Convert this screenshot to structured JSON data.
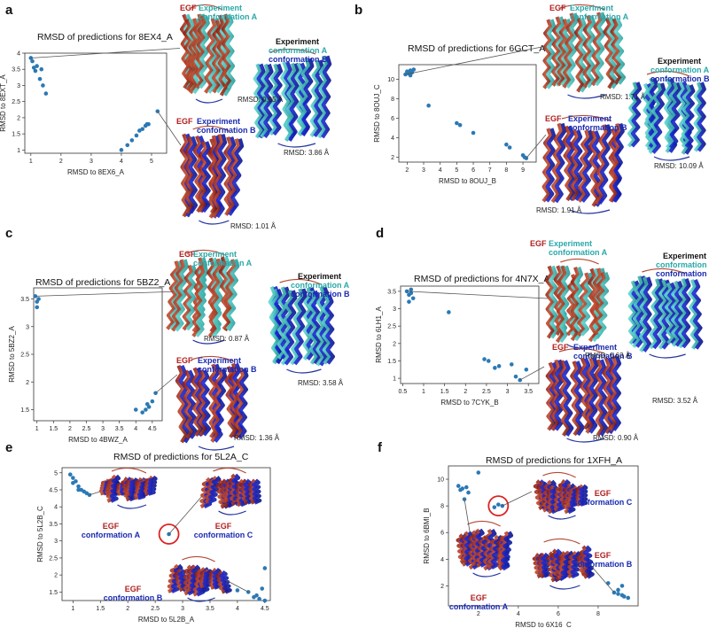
{
  "panels": [
    {
      "id": "a",
      "letter": "a",
      "title": "RMSD of predictions for 8EX4_A",
      "xlabel": "RMSD to 8EX6_A",
      "ylabel": "RMSD to 8EXT_A",
      "egf_top": "EGF",
      "egf_top_conf": [
        "Experiment",
        "conformation A"
      ],
      "rmsd_top": "RMSD: 0.95 Å",
      "egf_bottom": "EGF",
      "egf_bottom_conf": [
        "Experiment",
        "conformation B"
      ],
      "rmsd_bottom": "RMSD: 1.01 Å",
      "exp_lines": [
        "Experiment",
        "conformation A",
        "conformation B"
      ],
      "rmsd_exp": "RMSD: 3.86 Å"
    },
    {
      "id": "b",
      "letter": "b",
      "title": "RMSD of predictions for 6GCT_A",
      "xlabel": "RMSD to 8OUJ_B",
      "ylabel": "RMSD to 8OUJ_C",
      "egf_top": "EGF",
      "egf_top_conf": [
        "Experiment",
        "conformation A"
      ],
      "rmsd_top": "RMSD: 1.71 Å",
      "egf_bottom": "EGF",
      "egf_bottom_conf": [
        "Experiment",
        "conformation B"
      ],
      "rmsd_bottom": "RMSD: 1.91 Å",
      "exp_lines": [
        "Experiment",
        "conformation A",
        "conformation B"
      ],
      "rmsd_exp": "RMSD: 10.09 Å"
    },
    {
      "id": "c",
      "letter": "c",
      "title": "RMSD of predictions for 5BZ2_A",
      "xlabel": "RMSD to 4BWZ_A",
      "ylabel": "RMSD to 5BZ2_A",
      "egf_top": "EGF",
      "egf_top_conf": [
        "Experiment",
        "conformation A"
      ],
      "rmsd_top": "RMSD: 0.87 Å",
      "egf_bottom": "EGF",
      "egf_bottom_conf": [
        "Experiment",
        "conformation B"
      ],
      "rmsd_bottom": "RMSD: 1.36 Å",
      "exp_lines": [
        "Experiment",
        "conformation A",
        "conformation B"
      ],
      "rmsd_exp": "RMSD: 3.58 Å"
    },
    {
      "id": "d",
      "letter": "d",
      "title": "RMSD of predictions for 4N7X_A",
      "xlabel": "RMSD to 7CYK_B",
      "ylabel": "RMSD to 6LH1_A",
      "egf_top": "EGF",
      "egf_top_conf": [
        "Experiment",
        "conformation A"
      ],
      "rmsd_top": "RMSD: 0.63 Å",
      "egf_bottom": "EGF",
      "egf_bottom_conf": [
        "Experiment",
        "conformation B"
      ],
      "rmsd_bottom": "RMSD: 0.90 Å",
      "exp_lines": [
        "Experiment",
        "conformation A",
        "conformation B"
      ],
      "rmsd_exp": "RMSD: 3.52 Å"
    },
    {
      "id": "e",
      "letter": "e",
      "title": "RMSD of predictions for 5L2A_C",
      "xlabel": "RMSD to 5L2B_A",
      "ylabel": "RMSD to 5L2B_C",
      "labels": [
        [
          "EGF",
          "conformation A"
        ],
        [
          "EGF",
          "conformation C"
        ],
        [
          "EGF",
          "conformation B"
        ]
      ]
    },
    {
      "id": "f",
      "letter": "f",
      "title": "RMSD of predictions for 1XFH_A",
      "xlabel": "RMSD to 6X16_C",
      "ylabel": "RMSD to 6BMI_B",
      "labels": [
        [
          "EGF",
          "conformation C"
        ],
        [
          "EGF",
          "conformation B"
        ],
        [
          "EGF",
          "conformation A"
        ]
      ]
    }
  ],
  "chart_data": [
    {
      "type": "scatter",
      "panel": "a",
      "title": "RMSD of predictions for 8EX4_A",
      "xlabel": "RMSD to 8EX6_A",
      "ylabel": "RMSD to 8EXT_A",
      "xlim": [
        0.8,
        5.5
      ],
      "ylim": [
        0.9,
        4.0
      ],
      "xticks": [
        1,
        2,
        3,
        4,
        5
      ],
      "yticks": [
        1.0,
        1.5,
        2.0,
        2.5,
        3.0,
        3.5,
        4.0
      ],
      "x": [
        1.0,
        1.05,
        1.1,
        1.2,
        1.15,
        1.3,
        1.4,
        1.35,
        1.5,
        4.0,
        4.2,
        4.35,
        4.5,
        4.6,
        4.7,
        4.8,
        4.85,
        4.9,
        5.2
      ],
      "y": [
        3.85,
        3.75,
        3.55,
        3.6,
        3.45,
        3.2,
        3.0,
        3.5,
        2.75,
        1.0,
        1.15,
        1.3,
        1.45,
        1.6,
        1.65,
        1.75,
        1.8,
        1.8,
        2.2
      ]
    },
    {
      "type": "scatter",
      "panel": "b",
      "title": "RMSD of predictions for 6GCT_A",
      "xlabel": "RMSD to 8OUJ_B",
      "ylabel": "RMSD to 8OUJ_C",
      "xlim": [
        1.5,
        9.8
      ],
      "ylim": [
        1.5,
        11.5
      ],
      "xticks": [
        2,
        3,
        4,
        5,
        6,
        7,
        8,
        9
      ],
      "yticks": [
        2,
        4,
        6,
        8,
        10
      ],
      "x": [
        1.9,
        2.0,
        2.1,
        2.2,
        2.3,
        2.4,
        2.2,
        3.3,
        5.0,
        5.2,
        6.0,
        8.0,
        8.2,
        9.0,
        9.1,
        9.2
      ],
      "y": [
        10.5,
        10.8,
        10.6,
        10.9,
        10.7,
        11.0,
        10.4,
        7.3,
        5.5,
        5.3,
        4.5,
        3.3,
        3.0,
        2.2,
        2.0,
        1.9
      ]
    },
    {
      "type": "scatter",
      "panel": "c",
      "title": "RMSD of predictions for 5BZ2_A",
      "xlabel": "RMSD to 4BWZ_A",
      "ylabel": "RMSD to 5BZ2_A",
      "xlim": [
        0.9,
        4.8
      ],
      "ylim": [
        1.3,
        3.7
      ],
      "xticks": [
        1.0,
        1.5,
        2.0,
        2.5,
        3.0,
        3.5,
        4.0,
        4.5
      ],
      "yticks": [
        1.5,
        2.0,
        2.5,
        3.0,
        3.5
      ],
      "x": [
        0.95,
        1.0,
        1.05,
        1.0,
        4.0,
        4.2,
        4.3,
        4.35,
        4.4,
        4.5,
        4.6
      ],
      "y": [
        3.55,
        3.45,
        3.5,
        3.35,
        1.5,
        1.45,
        1.5,
        1.6,
        1.55,
        1.65,
        1.8
      ]
    },
    {
      "type": "scatter",
      "panel": "d",
      "title": "RMSD of predictions for 4N7X_A",
      "xlabel": "RMSD to 7CYK_B",
      "ylabel": "RMSD to 6LH1_A",
      "xlim": [
        0.45,
        3.75
      ],
      "ylim": [
        0.85,
        3.65
      ],
      "xticks": [
        0.5,
        1.0,
        1.5,
        2.0,
        2.5,
        3.0,
        3.5
      ],
      "yticks": [
        1.0,
        1.5,
        2.0,
        2.5,
        3.0,
        3.5
      ],
      "x": [
        0.6,
        0.65,
        0.7,
        0.75,
        0.65,
        0.7,
        1.6,
        2.45,
        2.55,
        2.7,
        2.8,
        3.1,
        3.2,
        3.45,
        3.3
      ],
      "y": [
        3.5,
        3.4,
        3.45,
        3.3,
        3.2,
        3.55,
        2.9,
        1.55,
        1.5,
        1.3,
        1.35,
        1.4,
        1.05,
        1.25,
        0.95
      ]
    },
    {
      "type": "scatter",
      "panel": "e",
      "title": "RMSD of predictions for 5L2A_C",
      "xlabel": "RMSD to 5L2B_A",
      "ylabel": "RMSD to 5L2B_C",
      "xlim": [
        0.8,
        4.6
      ],
      "ylim": [
        1.25,
        5.15
      ],
      "xticks": [
        1.0,
        1.5,
        2.0,
        2.5,
        3.0,
        3.5,
        4.0,
        4.5
      ],
      "yticks": [
        1.5,
        2.0,
        2.5,
        3.0,
        3.5,
        4.0,
        4.5,
        5.0
      ],
      "x": [
        0.95,
        1.0,
        1.05,
        1.1,
        1.15,
        1.2,
        1.25,
        1.3,
        1.0,
        1.1,
        2.75,
        4.0,
        4.2,
        4.3,
        4.35,
        4.4,
        4.5,
        4.45,
        4.5
      ],
      "y": [
        4.95,
        4.85,
        4.75,
        4.6,
        4.5,
        4.45,
        4.4,
        4.35,
        4.7,
        4.5,
        3.2,
        1.55,
        1.5,
        1.35,
        1.4,
        1.3,
        1.25,
        1.6,
        2.2
      ]
    },
    {
      "type": "scatter",
      "panel": "f",
      "title": "RMSD of predictions for 1XFH_A",
      "xlabel": "RMSD to 6X16_C",
      "ylabel": "RMSD to 6BMI_B",
      "xlim": [
        0.5,
        10.0
      ],
      "ylim": [
        0.5,
        11.0
      ],
      "xticks": [
        2,
        4,
        6,
        8
      ],
      "yticks": [
        2,
        4,
        6,
        8,
        10
      ],
      "x": [
        1.0,
        1.2,
        1.4,
        1.5,
        1.3,
        1.1,
        2.0,
        2.8,
        3.0,
        3.2,
        8.5,
        8.8,
        9.0,
        9.2,
        9.3,
        9.5,
        9.0,
        9.2
      ],
      "y": [
        9.5,
        9.3,
        9.4,
        9.0,
        8.5,
        9.2,
        10.5,
        7.9,
        8.1,
        8.0,
        2.2,
        1.5,
        1.4,
        1.3,
        1.2,
        1.1,
        1.7,
        2.0
      ]
    }
  ]
}
